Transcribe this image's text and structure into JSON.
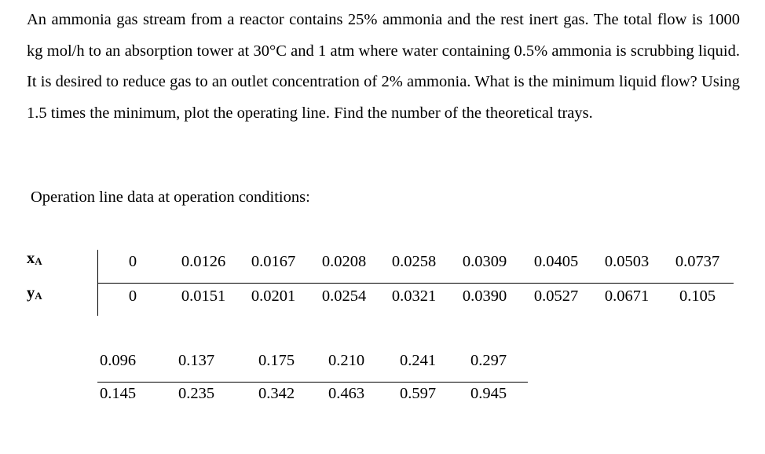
{
  "problem_text": "An ammonia gas stream from a reactor contains 25% ammonia and the rest inert gas. The total flow is 1000 kg mol/h to an absorption tower at 30°C and 1 atm where water containing 0.5% ammonia is scrubbing liquid. It is desired to reduce gas to an outlet concentration of 2% ammonia. What is the minimum liquid flow? Using 1.5 times the minimum, plot the operating line. Find the number of the theoretical trays.",
  "subheading": "Operation line data at operation conditions:",
  "labels": {
    "x_main": "x",
    "x_sub": "A",
    "y_main": "y",
    "y_sub": "A"
  },
  "table_1": {
    "x": [
      "0",
      "0.0126",
      "0.0167",
      "0.0208",
      "0.0258",
      "0.0309",
      "0.0405",
      "0.0503",
      "0.0737"
    ],
    "y": [
      "0",
      "0.0151",
      "0.0201",
      "0.0254",
      "0.0321",
      "0.0390",
      "0.0527",
      "0.0671",
      "0.105"
    ]
  },
  "table_2": {
    "x": [
      "0.096",
      "0.137",
      "0.175",
      "0.210",
      "0.241",
      "0.297"
    ],
    "y": [
      "0.145",
      "0.235",
      "0.342",
      "0.463",
      "0.597",
      "0.945"
    ]
  }
}
